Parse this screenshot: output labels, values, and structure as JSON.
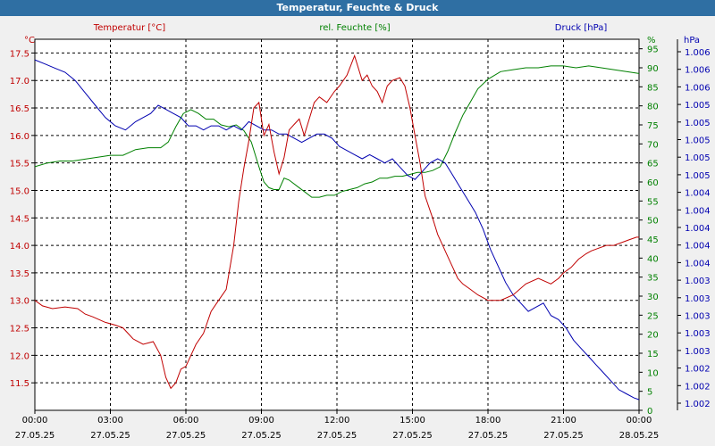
{
  "window": {
    "title": "Temperatur, Feuchte & Druck"
  },
  "chart_data": {
    "type": "line",
    "title": "Temperatur, Feuchte & Druck",
    "colors": {
      "temperature": "#c00000",
      "humidity": "#008000",
      "pressure": "#0000b0",
      "axis_text": "#000000"
    },
    "x_ticks": [
      {
        "time": "00:00",
        "date": "27.05.25"
      },
      {
        "time": "03:00",
        "date": "27.05.25"
      },
      {
        "time": "06:00",
        "date": "27.05.25"
      },
      {
        "time": "09:00",
        "date": "27.05.25"
      },
      {
        "time": "12:00",
        "date": "27.05.25"
      },
      {
        "time": "15:00",
        "date": "27.05.25"
      },
      {
        "time": "18:00",
        "date": "27.05.25"
      },
      {
        "time": "21:00",
        "date": "27.05.25"
      },
      {
        "time": "00:00",
        "date": "28.05.25"
      }
    ],
    "xlim_hours": [
      0,
      24
    ],
    "temperature": {
      "name": "Temperatur [°C]",
      "unit": "°C",
      "ylim": [
        11.0,
        17.75
      ],
      "ticks": [
        "17.5",
        "17.0",
        "16.5",
        "16.0",
        "15.5",
        "15.0",
        "14.5",
        "14.0",
        "13.5",
        "13.0",
        "12.5",
        "12.0",
        "11.5"
      ],
      "x": [
        0,
        0.3,
        0.7,
        1.2,
        1.7,
        2.0,
        2.3,
        2.8,
        3.2,
        3.5,
        3.9,
        4.3,
        4.7,
        5.0,
        5.2,
        5.4,
        5.6,
        5.8,
        6.0,
        6.2,
        6.4,
        6.7,
        7.0,
        7.3,
        7.6,
        7.9,
        8.1,
        8.3,
        8.5,
        8.7,
        8.9,
        9.1,
        9.3,
        9.5,
        9.7,
        9.9,
        10.1,
        10.3,
        10.5,
        10.7,
        10.9,
        11.1,
        11.3,
        11.6,
        11.9,
        12.1,
        12.4,
        12.7,
        13.0,
        13.2,
        13.4,
        13.6,
        13.8,
        14.0,
        14.2,
        14.5,
        14.7,
        14.9,
        15.1,
        15.3,
        15.5,
        15.8,
        16.0,
        16.2,
        16.4,
        16.6,
        16.8,
        17.0,
        17.3,
        17.6,
        18.0,
        18.5,
        19.0,
        19.5,
        20.0,
        20.5,
        20.8,
        21.0,
        21.3,
        21.6,
        21.9,
        22.1,
        22.4,
        22.7,
        23.0,
        23.3,
        23.6,
        23.9,
        24.0
      ],
      "y": [
        13.0,
        12.9,
        12.85,
        12.88,
        12.85,
        12.75,
        12.7,
        12.6,
        12.55,
        12.5,
        12.3,
        12.2,
        12.25,
        12.0,
        11.6,
        11.4,
        11.5,
        11.75,
        11.8,
        12.0,
        12.2,
        12.4,
        12.8,
        13.0,
        13.2,
        14.0,
        14.8,
        15.4,
        15.9,
        16.5,
        16.6,
        16.0,
        16.2,
        15.7,
        15.3,
        15.6,
        16.1,
        16.2,
        16.3,
        16.0,
        16.3,
        16.6,
        16.7,
        16.6,
        16.8,
        16.9,
        17.1,
        17.45,
        17.0,
        17.1,
        16.9,
        16.8,
        16.6,
        16.9,
        17.0,
        17.05,
        16.9,
        16.5,
        16.0,
        15.5,
        14.9,
        14.5,
        14.2,
        14.0,
        13.8,
        13.6,
        13.4,
        13.3,
        13.2,
        13.1,
        13.0,
        13.0,
        13.1,
        13.3,
        13.4,
        13.3,
        13.4,
        13.5,
        13.6,
        13.75,
        13.85,
        13.9,
        13.95,
        14.0,
        14.0,
        14.05,
        14.1,
        14.15,
        14.15
      ]
    },
    "humidity": {
      "name": "rel. Feuchte [%]",
      "unit": "%",
      "ylim": [
        0,
        97.5
      ],
      "ticks": [
        "95",
        "90",
        "85",
        "80",
        "75",
        "70",
        "65",
        "60",
        "55",
        "50",
        "45",
        "40",
        "35",
        "30",
        "25",
        "20",
        "15",
        "10",
        "5",
        "0"
      ],
      "x": [
        0,
        0.5,
        1.0,
        1.5,
        2.0,
        2.5,
        3.0,
        3.5,
        4.0,
        4.5,
        5.0,
        5.3,
        5.6,
        5.9,
        6.2,
        6.5,
        6.8,
        7.1,
        7.4,
        7.7,
        8.0,
        8.3,
        8.6,
        8.9,
        9.1,
        9.3,
        9.5,
        9.7,
        9.9,
        10.1,
        10.4,
        10.7,
        11.0,
        11.3,
        11.6,
        11.9,
        12.2,
        12.5,
        12.8,
        13.1,
        13.4,
        13.7,
        14.0,
        14.3,
        14.6,
        14.9,
        15.2,
        15.5,
        15.8,
        16.1,
        16.4,
        16.7,
        17.0,
        17.3,
        17.6,
        18.0,
        18.5,
        19.0,
        19.5,
        20.0,
        20.5,
        21.0,
        21.5,
        22.0,
        22.5,
        23.0,
        23.5,
        24.0
      ],
      "y": [
        64.0,
        65.0,
        65.5,
        65.5,
        66.0,
        66.5,
        67.0,
        67.0,
        68.5,
        69.0,
        69.0,
        70.5,
        74.5,
        78.0,
        79.0,
        78.0,
        76.5,
        76.5,
        75.0,
        74.5,
        75.0,
        73.5,
        70.5,
        64.0,
        60.0,
        58.5,
        58.0,
        58.0,
        61.0,
        60.5,
        59.0,
        57.5,
        56.0,
        56.0,
        56.5,
        56.5,
        57.5,
        58.0,
        58.5,
        59.5,
        60.0,
        61.0,
        61.0,
        61.5,
        61.5,
        62.0,
        62.5,
        62.5,
        63.0,
        64.0,
        68.0,
        73.0,
        77.5,
        81.0,
        84.5,
        87.0,
        89.0,
        89.5,
        90.0,
        90.0,
        90.5,
        90.5,
        90.0,
        90.5,
        90.0,
        89.5,
        89.0,
        88.5
      ]
    },
    "pressure": {
      "name": "Druck [hPa]",
      "unit": "hPa",
      "ylim": [
        1001.75,
        1006.25
      ],
      "ticks": [
        "1.006",
        "1.006",
        "1.006",
        "1.005",
        "1.005",
        "1.005",
        "1.005",
        "1.005",
        "1.004",
        "1.004",
        "1.004",
        "1.004",
        "1.004",
        "1.003",
        "1.003",
        "1.003",
        "1.003",
        "1.003",
        "1.002",
        "1.002",
        "1.002"
      ],
      "x": [
        0,
        0.4,
        0.8,
        1.2,
        1.6,
        2.0,
        2.4,
        2.8,
        3.2,
        3.6,
        4.0,
        4.3,
        4.6,
        4.9,
        5.2,
        5.5,
        5.8,
        6.1,
        6.4,
        6.7,
        7.0,
        7.3,
        7.6,
        7.9,
        8.2,
        8.5,
        8.8,
        9.1,
        9.4,
        9.7,
        10.0,
        10.3,
        10.6,
        10.9,
        11.2,
        11.5,
        11.8,
        12.1,
        12.4,
        12.7,
        13.0,
        13.3,
        13.6,
        13.9,
        14.2,
        14.5,
        14.8,
        15.1,
        15.4,
        15.7,
        16.0,
        16.3,
        16.6,
        16.9,
        17.2,
        17.5,
        17.8,
        18.1,
        18.4,
        18.7,
        19.0,
        19.3,
        19.6,
        19.9,
        20.2,
        20.5,
        20.8,
        21.1,
        21.4,
        21.7,
        22.0,
        22.3,
        22.6,
        22.9,
        23.2,
        23.5,
        23.8,
        24.0
      ],
      "y": [
        1006.0,
        1005.95,
        1005.9,
        1005.85,
        1005.75,
        1005.6,
        1005.45,
        1005.3,
        1005.2,
        1005.15,
        1005.25,
        1005.3,
        1005.35,
        1005.45,
        1005.4,
        1005.35,
        1005.3,
        1005.2,
        1005.2,
        1005.15,
        1005.2,
        1005.2,
        1005.15,
        1005.2,
        1005.15,
        1005.25,
        1005.2,
        1005.15,
        1005.15,
        1005.1,
        1005.1,
        1005.05,
        1005.0,
        1005.05,
        1005.1,
        1005.1,
        1005.05,
        1004.95,
        1004.9,
        1004.85,
        1004.8,
        1004.85,
        1004.8,
        1004.75,
        1004.8,
        1004.7,
        1004.6,
        1004.55,
        1004.65,
        1004.75,
        1004.8,
        1004.75,
        1004.6,
        1004.45,
        1004.3,
        1004.15,
        1003.95,
        1003.7,
        1003.5,
        1003.3,
        1003.15,
        1003.05,
        1002.95,
        1003.0,
        1003.05,
        1002.9,
        1002.85,
        1002.75,
        1002.6,
        1002.5,
        1002.4,
        1002.3,
        1002.2,
        1002.1,
        1002.0,
        1001.95,
        1001.9,
        1001.88
      ]
    }
  }
}
